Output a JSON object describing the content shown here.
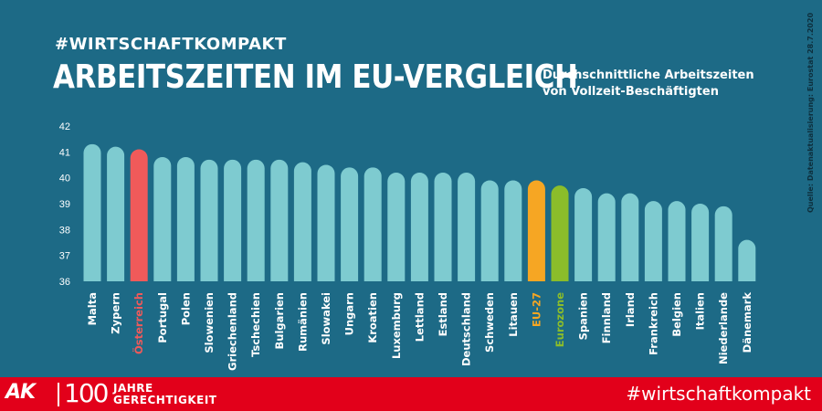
{
  "header": {
    "hashtag": "#WIRTSCHAFTKOMPAKT",
    "title": "ARBEITSZEITEN IM EU-VERGLEICH",
    "subtitle_line1": "Durchschnittliche Arbeitszeiten",
    "subtitle_line2": "von Vollzeit-Beschäftigten"
  },
  "source": "Quelle: Datenaktualisierung: Eurostat 28.7.2020",
  "footer": {
    "logo": "AK",
    "anniversary_number": "100",
    "anniversary_line1": "JAHRE",
    "anniversary_line2": "GERECHTIGKEIT",
    "hashtag": "#wirtschaftkompakt"
  },
  "colors": {
    "background": "#1d6a86",
    "bar_default": "#7ecbd0",
    "highlight_austria": "#f05a5a",
    "highlight_eu27": "#f6a623",
    "highlight_eurozone": "#8bbd2a",
    "footer": "#e2001a"
  },
  "chart_data": {
    "type": "bar",
    "title": "Arbeitszeiten im EU-Vergleich",
    "xlabel": "",
    "ylabel": "",
    "ylim": [
      36,
      42
    ],
    "yticks": [
      36,
      37,
      38,
      39,
      40,
      41,
      42
    ],
    "grid": false,
    "categories": [
      "Malta",
      "Zypern",
      "Österreich",
      "Portugal",
      "Polen",
      "Slowenien",
      "Griechenland",
      "Tschechien",
      "Bulgarien",
      "Rumänien",
      "Slowakei",
      "Ungarn",
      "Kroatien",
      "Luxemburg",
      "Lettland",
      "Estland",
      "Deutschland",
      "Schweden",
      "Litauen",
      "EU-27",
      "Eurozone",
      "Spanien",
      "Finnland",
      "Irland",
      "Frankreich",
      "Belgien",
      "Italien",
      "Niederlande",
      "Dänemark"
    ],
    "values": [
      41.3,
      41.2,
      41.1,
      40.8,
      40.8,
      40.7,
      40.7,
      40.7,
      40.7,
      40.6,
      40.5,
      40.4,
      40.4,
      40.2,
      40.2,
      40.2,
      40.2,
      39.9,
      39.9,
      39.9,
      39.7,
      39.6,
      39.4,
      39.4,
      39.1,
      39.1,
      39.0,
      38.9,
      37.6
    ],
    "highlights": {
      "Österreich": "highlight_austria",
      "EU-27": "highlight_eu27",
      "Eurozone": "highlight_eurozone"
    }
  }
}
